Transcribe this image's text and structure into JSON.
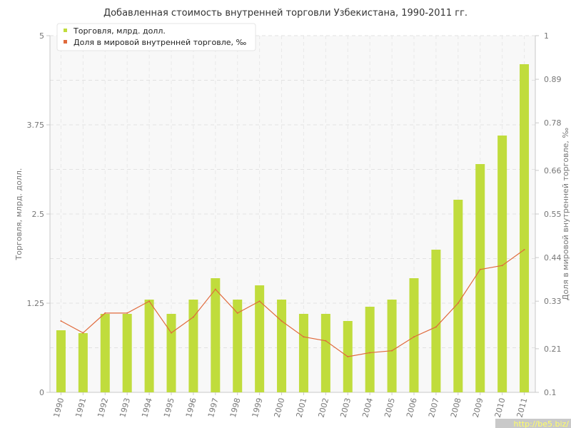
{
  "chart_data": {
    "type": "bar",
    "title": "Добавленная стоимость внутренней торговли Узбекистана, 1990-2011 гг.",
    "ylabel": "Торговля, млрд. долл.",
    "y2label": "Доля в мировой внутренней торговле, ‰",
    "categories": [
      "1990",
      "1991",
      "1992",
      "1993",
      "1994",
      "1995",
      "1996",
      "1997",
      "1998",
      "1999",
      "2000",
      "2001",
      "2002",
      "2003",
      "2004",
      "2005",
      "2006",
      "2007",
      "2008",
      "2009",
      "2010",
      "2011"
    ],
    "ylim": [
      0,
      5
    ],
    "y2lim": [
      0.1,
      1
    ],
    "yticks": [
      "0",
      "1.25",
      "2.5",
      "3.75",
      "5"
    ],
    "y2ticks": [
      "0.1",
      "0.21",
      "0.33",
      "0.44",
      "0.55",
      "0.66",
      "0.78",
      "0.89",
      "1"
    ],
    "grid": true,
    "legend_position": "top-left",
    "series": [
      {
        "name": "Торговля, млрд. долл.",
        "type": "bar",
        "axis": "left",
        "color": "#c0dc3c",
        "values": [
          0.87,
          0.83,
          1.1,
          1.1,
          1.3,
          1.1,
          1.3,
          1.6,
          1.3,
          1.5,
          1.3,
          1.1,
          1.1,
          1.0,
          1.2,
          1.3,
          1.6,
          2.0,
          2.7,
          3.2,
          3.6,
          4.6
        ]
      },
      {
        "name": "Доля в мировой внутренней торговле, ‰",
        "type": "line",
        "axis": "right",
        "color": "#e06a3c",
        "values": [
          0.28,
          0.25,
          0.3,
          0.3,
          0.33,
          0.25,
          0.29,
          0.36,
          0.3,
          0.33,
          0.28,
          0.24,
          0.23,
          0.19,
          0.2,
          0.205,
          0.24,
          0.265,
          0.325,
          0.41,
          0.42,
          0.46
        ]
      }
    ]
  },
  "watermark": "http://be5.biz/"
}
